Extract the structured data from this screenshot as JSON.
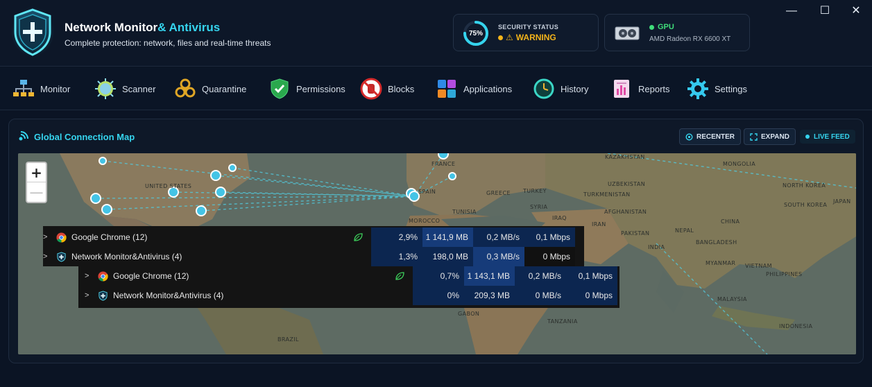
{
  "app": {
    "title_main": "Network Monitor",
    "title_accent": "& Antivirus",
    "subtitle": "Complete protection: network, files and real-time threats"
  },
  "security": {
    "percent": "75%",
    "percent_value": 0.75,
    "label": "SECURITY STATUS",
    "status": "WARNING",
    "status_color": "#f4b41a"
  },
  "gpu": {
    "label": "GPU",
    "model": "AMD Radeon RX 6600 XT",
    "status_color": "#3fdc7a"
  },
  "window_controls": {
    "minimize": "—",
    "maximize": "☐",
    "close": "✕"
  },
  "nav": [
    {
      "label": "Monitor",
      "icon": "network-icon"
    },
    {
      "label": "Scanner",
      "icon": "virus-icon"
    },
    {
      "label": "Quarantine",
      "icon": "biohazard-icon"
    },
    {
      "label": "Permissions",
      "icon": "shield-check-icon"
    },
    {
      "label": "Blocks",
      "icon": "block-hand-icon"
    },
    {
      "label": "Applications",
      "icon": "apps-icon"
    },
    {
      "label": "History",
      "icon": "clock-icon"
    },
    {
      "label": "Reports",
      "icon": "report-icon"
    },
    {
      "label": "Settings",
      "icon": "gear-icon"
    }
  ],
  "map_panel": {
    "title": "Global Connection Map",
    "recenter": "RECENTER",
    "expand": "EXPAND",
    "live_feed": "LIVE FEED",
    "zoom_in": "+",
    "zoom_out": "—",
    "labels": [
      "FRANCE",
      "KAZAKHSTAN",
      "MONGOLIA",
      "UNITED STATES",
      "SPAIN",
      "UZBEKISTAN",
      "NORTH KOREA",
      "SOUTH KOREA",
      "TURKEY",
      "GREECE",
      "TURKMENISTAN",
      "JAPAN",
      "TUNISIA",
      "SYRIA",
      "MOROCCO",
      "IRAQ",
      "AFGHANISTAN",
      "IRAN",
      "CHINA",
      "PAKISTAN",
      "NEPAL",
      "BANGLADESH",
      "INDIA",
      "MYANMAR",
      "VIETNAM",
      "PHILIPPINES",
      "MALAYSIA",
      "GABON",
      "TANZANIA",
      "BRAZIL",
      "INDONESIA"
    ]
  },
  "process_table_1": [
    {
      "name": "Google Chrome (12)",
      "cpu": "2,9%",
      "memory": "1 141,9 MB",
      "disk": "0,2 MB/s",
      "network": "0,1 Mbps",
      "leaf": true
    },
    {
      "name": "Network Monitor&Antivirus (4)",
      "cpu": "1,3%",
      "memory": "198,0 MB",
      "disk": "0,3 MB/s",
      "network": "0 Mbps",
      "leaf": false
    }
  ],
  "process_table_2": [
    {
      "name": "Google Chrome (12)",
      "cpu": "0,7%",
      "memory": "1 143,1 MB",
      "disk": "0,2 MB/s",
      "network": "0,1 Mbps",
      "leaf": true
    },
    {
      "name": "Network Monitor&Antivirus (4)",
      "cpu": "0%",
      "memory": "209,3 MB",
      "disk": "0 MB/s",
      "network": "0 Mbps",
      "leaf": false
    }
  ]
}
